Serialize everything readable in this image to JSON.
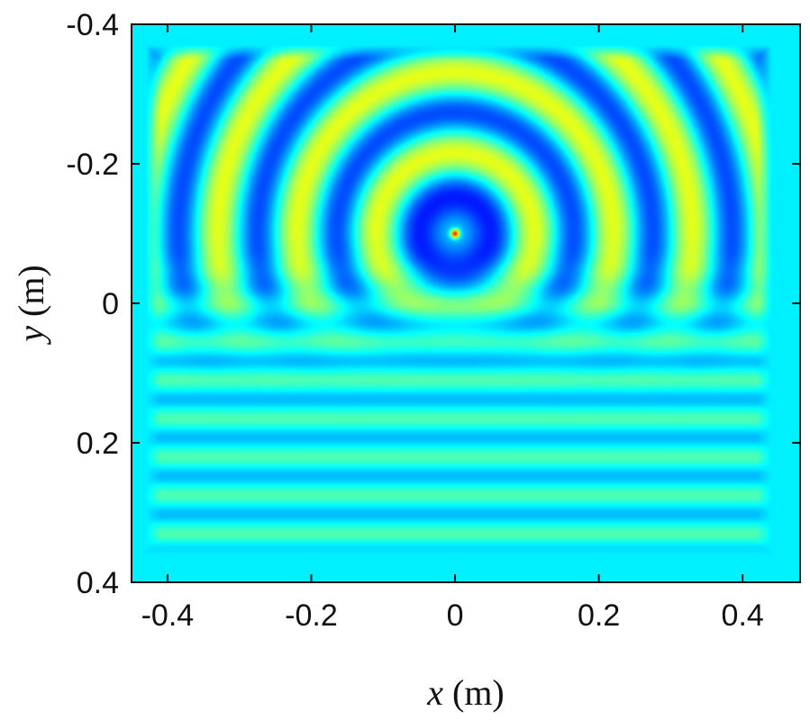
{
  "chart_data": {
    "type": "heatmap",
    "title": "",
    "xlabel": {
      "var": "x",
      "unit": " (m)"
    },
    "ylabel": {
      "var": "y",
      "unit": " (m)"
    },
    "xlim": [
      -0.45,
      0.48
    ],
    "ylim": [
      -0.4,
      0.4
    ],
    "y_axis_reversed": true,
    "xticks": [
      -0.4,
      -0.2,
      0,
      0.2,
      0.4
    ],
    "xtick_labels": [
      "-0.4",
      "-0.2",
      "0",
      "0.2",
      "0.4"
    ],
    "yticks": [
      -0.4,
      -0.2,
      0,
      0.2,
      0.4
    ],
    "ytick_labels": [
      "-0.4",
      "-0.2",
      "0",
      "0.2",
      "0.4"
    ],
    "colormap": "jet",
    "background_color": "#1f8fe8",
    "field": {
      "source": {
        "x": 0.0,
        "y": -0.1
      },
      "domain": {
        "x": [
          -0.43,
          0.44
        ],
        "y": [
          -0.37,
          0.36
        ]
      },
      "upper_wavelength_m": 0.11,
      "lower_band_spacing_m": 0.055,
      "description": "concentric circular wavefronts from a point source in the upper region, horizontal layered bands in the lower region"
    },
    "grid": false,
    "legend": "none"
  }
}
